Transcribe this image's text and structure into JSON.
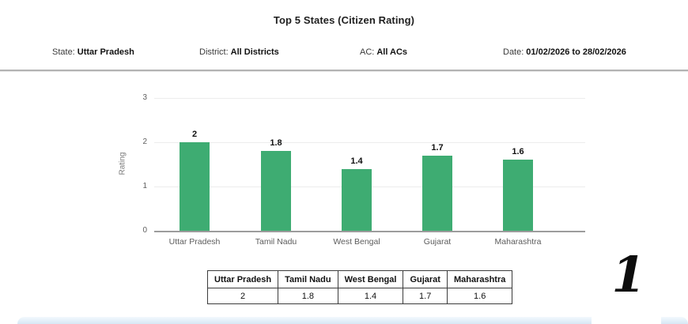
{
  "header": {
    "title": "Top 5 States (Citizen Rating)"
  },
  "filters": [
    {
      "label": "State:",
      "value": "Uttar Pradesh"
    },
    {
      "label": "District:",
      "value": "All Districts"
    },
    {
      "label": "AC:",
      "value": "All ACs"
    },
    {
      "label": "Date:",
      "value": "01/02/2026 to 28/02/2026"
    }
  ],
  "chart_data": {
    "type": "bar",
    "title": "Top 5 States (Citizen Rating)",
    "categories": [
      "Uttar Pradesh",
      "Tamil Nadu",
      "West Bengal",
      "Gujarat",
      "Maharashtra"
    ],
    "values": [
      2,
      1.8,
      1.4,
      1.7,
      1.6
    ],
    "value_labels": [
      "2",
      "1.8",
      "1.4",
      "1.7",
      "1.6"
    ],
    "xlabel": "",
    "ylabel": "Rating",
    "ylim": [
      0,
      3
    ],
    "yticks": [
      0,
      1,
      2,
      3
    ],
    "grid": true,
    "legend": false,
    "bar_color": "#3eac72"
  },
  "table": {
    "headers": [
      "Uttar Pradesh",
      "Tamil Nadu",
      "West Bengal",
      "Gujarat",
      "Maharashtra"
    ],
    "values": [
      "2",
      "1.8",
      "1.4",
      "1.7",
      "1.6"
    ]
  },
  "annotation": {
    "page_number": "1"
  },
  "colors": {
    "bar": "#3eac72",
    "bottom_strip": "#d7e7f5",
    "gridline": "#ededed",
    "axis": "#9c9c9c"
  }
}
